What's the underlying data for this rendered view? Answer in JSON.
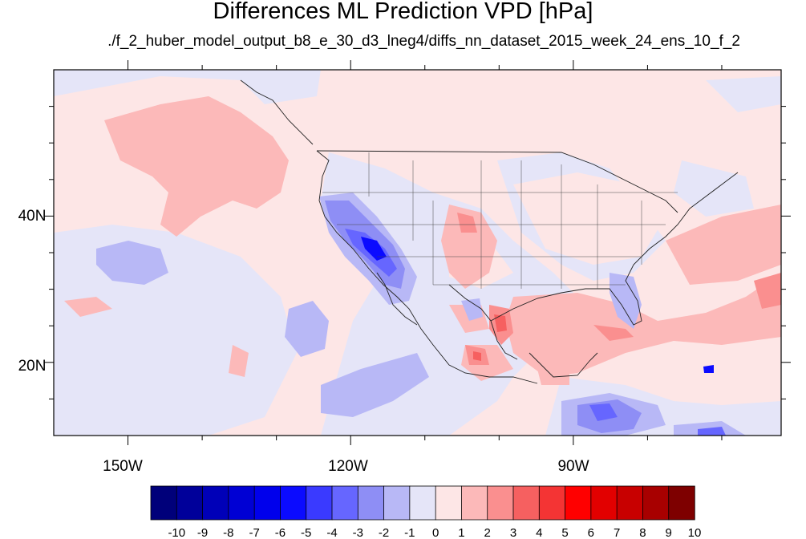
{
  "title": "Differences ML Prediction VPD [hPa]",
  "subtitle": "./f_2_huber_model_output_b8_e_30_d3_lneg4/diffs_nn_dataset_2015_week_24_ens_10_f_2",
  "map": {
    "lon_range": [
      -160,
      -62
    ],
    "lat_range": [
      10,
      60
    ],
    "lon_labels": [
      "150W",
      "120W",
      "90W"
    ],
    "lat_labels": [
      "40N",
      "20N"
    ],
    "ocean_color": "#fde6e6"
  },
  "colorbar": {
    "labels": [
      "-10",
      "-9",
      "-8",
      "-7",
      "-6",
      "-5",
      "-4",
      "-3",
      "-2",
      "-1",
      "0",
      "1",
      "2",
      "3",
      "4",
      "5",
      "6",
      "7",
      "8",
      "9",
      "10"
    ],
    "colors": [
      "#00007a",
      "#00009a",
      "#0000b8",
      "#0000d4",
      "#0000ec",
      "#0b0bff",
      "#3a3aff",
      "#6666ff",
      "#8e8ef5",
      "#b8b8f6",
      "#e5e5f8",
      "#fde6e6",
      "#fcb9b9",
      "#fa8f8f",
      "#f66060",
      "#f43434",
      "#ff0000",
      "#e20000",
      "#c80000",
      "#a80000",
      "#7e0000"
    ]
  }
}
